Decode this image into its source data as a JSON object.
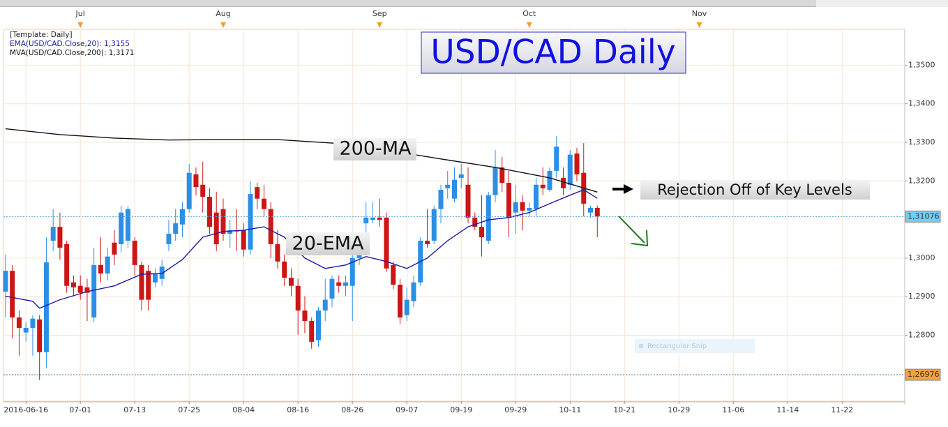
{
  "chart_data": {
    "type": "candlestick",
    "title": "USD/CAD Daily",
    "legend": [
      "[Template: Daily]",
      "EMA(USD/CAD.Close,20): 1,3155",
      "MVA(USD/CAD.Close,200): 1,3171"
    ],
    "xlim": [
      -0.3,
      132.2
    ],
    "xticks": [
      {
        "value": 3,
        "label": "2016-06-16"
      },
      {
        "value": 11,
        "label": "07-01"
      },
      {
        "value": 19,
        "label": "07-13"
      },
      {
        "value": 27,
        "label": "07-25"
      },
      {
        "value": 35,
        "label": "08-04"
      },
      {
        "value": 43,
        "label": "08-16"
      },
      {
        "value": 51,
        "label": "08-26"
      },
      {
        "value": 59,
        "label": "09-07"
      },
      {
        "value": 67,
        "label": "09-19"
      },
      {
        "value": 75,
        "label": "09-29"
      },
      {
        "value": 83,
        "label": "10-11"
      },
      {
        "value": 91,
        "label": "10-21"
      },
      {
        "value": 99,
        "label": "10-29"
      },
      {
        "value": 107,
        "label": "11-06"
      },
      {
        "value": 115,
        "label": "11-14"
      },
      {
        "value": 123,
        "label": "11-22"
      }
    ],
    "month_ticks": [
      {
        "value": 11,
        "label": "Jul"
      },
      {
        "value": 32,
        "label": "Aug"
      },
      {
        "value": 55,
        "label": "Sep"
      },
      {
        "value": 77,
        "label": "Oct"
      },
      {
        "value": 102,
        "label": "Nov"
      }
    ],
    "ylim": [
      1.2629,
      1.3593
    ],
    "yticks": [
      {
        "value": 1.28,
        "label": "1,2800"
      },
      {
        "value": 1.29,
        "label": "1,2900"
      },
      {
        "value": 1.3,
        "label": "1,3000"
      },
      {
        "value": 1.32,
        "label": "1,3200"
      },
      {
        "value": 1.33,
        "label": "1,3300"
      },
      {
        "value": 1.34,
        "label": "1,3400"
      },
      {
        "value": 1.35,
        "label": "1,3500"
      }
    ],
    "grid": true,
    "up_color": "#2b8fe6",
    "down_color": "#cc1616",
    "ohlc": {
      "open": [
        1.2913,
        1.2967,
        1.2846,
        1.2807,
        1.2819,
        1.2841,
        1.2756,
        1.3045,
        1.3081,
        1.3036,
        1.2937,
        1.2928,
        1.2924,
        1.2846,
        1.2982,
        1.296,
        1.304,
        1.3036,
        1.3045,
        1.3045,
        1.2982,
        1.2967,
        1.2937,
        1.2946,
        1.3036,
        1.3063,
        1.3087,
        1.3127,
        1.3217,
        1.319,
        1.3159,
        1.3118,
        1.3127,
        1.3063,
        1.3072,
        1.3072,
        1.3022,
        1.3184,
        1.3154,
        1.3127,
        1.3036,
        1.2991,
        1.2949,
        1.2928,
        1.2864,
        1.2837,
        1.2787,
        1.2864,
        1.2895,
        1.2937,
        1.2928,
        1.2928,
        1.3,
        1.309,
        1.3099,
        1.3105,
        1.3105,
        1.2982,
        1.2931,
        1.2852,
        1.2888,
        1.2937,
        1.3045,
        1.3045,
        1.3127,
        1.3181,
        1.3154,
        1.3208,
        1.319,
        1.3105,
        1.3081,
        1.3045,
        1.3163,
        1.3235,
        1.3195,
        1.3118,
        1.3145,
        1.3123,
        1.3127,
        1.319,
        1.3177,
        1.3226,
        1.3208,
        1.319,
        1.3271,
        1.3221,
        1.3118,
        1.313
      ],
      "high": [
        1.3009,
        1.2982,
        1.2864,
        1.2834,
        1.2852,
        1.2852,
        1.3054,
        1.3127,
        1.3118,
        1.3045,
        1.2955,
        1.2955,
        1.2946,
        1.3027,
        1.3054,
        1.3027,
        1.3072,
        1.3136,
        1.3136,
        1.3054,
        1.2991,
        1.2982,
        1.2973,
        1.2996,
        1.3099,
        1.3127,
        1.3145,
        1.3244,
        1.3235,
        1.325,
        1.3181,
        1.3172,
        1.3154,
        1.3099,
        1.3127,
        1.309,
        1.3199,
        1.3195,
        1.319,
        1.3145,
        1.3072,
        1.3009,
        1.2973,
        1.2946,
        1.2901,
        1.2846,
        1.2873,
        1.2946,
        1.2955,
        1.2955,
        1.2955,
        1.3009,
        1.3027,
        1.3145,
        1.3145,
        1.3154,
        1.3118,
        1.2991,
        1.2946,
        1.2924,
        1.2955,
        1.3054,
        1.3127,
        1.3136,
        1.319,
        1.3226,
        1.3235,
        1.3244,
        1.3235,
        1.3118,
        1.3163,
        1.3172,
        1.328,
        1.3262,
        1.3226,
        1.319,
        1.3163,
        1.3145,
        1.3208,
        1.3235,
        1.3235,
        1.3316,
        1.3235,
        1.328,
        1.3286,
        1.3298,
        1.3136,
        1.3136
      ],
      "low": [
        1.2846,
        1.2792,
        1.2747,
        1.2783,
        1.2747,
        1.2684,
        1.2714,
        1.3018,
        1.2996,
        1.291,
        1.2901,
        1.2892,
        1.2837,
        1.2834,
        1.2937,
        1.2942,
        1.2982,
        1.3014,
        1.3027,
        1.2955,
        1.2864,
        1.2864,
        1.2924,
        1.2928,
        1.3018,
        1.3045,
        1.3054,
        1.3118,
        1.3163,
        1.3118,
        1.3063,
        1.3018,
        1.3045,
        1.3027,
        1.3018,
        1.3004,
        1.3009,
        1.3127,
        1.3108,
        1.3,
        1.2973,
        1.2928,
        1.2901,
        1.2801,
        1.2805,
        1.2765,
        1.277,
        1.2837,
        1.2873,
        1.291,
        1.2901,
        1.2837,
        1.2982,
        1.3063,
        1.309,
        1.3081,
        1.2964,
        1.2919,
        1.2828,
        1.2837,
        1.2873,
        1.2928,
        1.3027,
        1.3036,
        1.309,
        1.3154,
        1.3145,
        1.3181,
        1.309,
        1.3072,
        1.3004,
        1.3036,
        1.3145,
        1.3172,
        1.3054,
        1.3063,
        1.3072,
        1.3108,
        1.3108,
        1.3163,
        1.3172,
        1.3208,
        1.3163,
        1.3177,
        1.3199,
        1.3108,
        1.3105,
        1.3054
      ],
      "close": [
        1.2967,
        1.2846,
        1.2819,
        1.2819,
        1.2843,
        1.2756,
        1.2989,
        1.3081,
        1.3027,
        1.2928,
        1.2924,
        1.291,
        1.291,
        1.2982,
        1.296,
        1.3004,
        1.3009,
        1.3118,
        1.3127,
        1.2982,
        1.2892,
        1.2892,
        1.296,
        1.2978,
        1.3063,
        1.309,
        1.3127,
        1.3221,
        1.3184,
        1.3159,
        1.3081,
        1.3036,
        1.3063,
        1.3072,
        1.3069,
        1.3022,
        1.3166,
        1.3154,
        1.3127,
        1.3036,
        1.2991,
        1.2949,
        1.2928,
        1.2864,
        1.2837,
        1.2783,
        1.2864,
        1.2892,
        1.2946,
        1.2928,
        1.2937,
        1.3,
        1.3018,
        1.3105,
        1.3105,
        1.3099,
        1.2973,
        1.2931,
        1.2846,
        1.2892,
        1.2937,
        1.3045,
        1.3036,
        1.3127,
        1.3177,
        1.319,
        1.3203,
        1.3217,
        1.3105,
        1.3081,
        1.3054,
        1.3163,
        1.3235,
        1.3195,
        1.3105,
        1.3145,
        1.3123,
        1.313,
        1.319,
        1.3181,
        1.3226,
        1.3289,
        1.3181,
        1.3268,
        1.3217,
        1.3141,
        1.313,
        1.3108
      ]
    },
    "lines": [
      {
        "color": "#111111",
        "x": [
          0,
          8,
          16,
          24,
          32,
          40,
          48,
          56,
          64,
          72,
          80,
          87
        ],
        "values": [
          1.3335,
          1.332,
          1.3311,
          1.3306,
          1.3307,
          1.3307,
          1.3298,
          1.328,
          1.3257,
          1.3235,
          1.3208,
          1.3171
        ]
      },
      {
        "color": "#1a1aa8",
        "x": [
          0,
          4,
          5,
          8,
          12,
          16,
          20,
          23,
          26,
          29,
          32,
          35,
          38,
          41,
          44,
          47,
          50,
          53,
          56,
          59,
          62,
          65,
          68,
          71,
          74,
          77,
          80,
          83,
          85,
          87
        ],
        "values": [
          1.2901,
          1.2888,
          1.287,
          1.2892,
          1.2913,
          1.2928,
          1.2958,
          1.296,
          1.2996,
          1.3054,
          1.3069,
          1.3072,
          1.3081,
          1.3054,
          1.3,
          1.2973,
          1.2982,
          1.3004,
          1.2991,
          1.2973,
          1.3,
          1.3045,
          1.3081,
          1.3099,
          1.3105,
          1.3118,
          1.3141,
          1.3163,
          1.3177,
          1.3155
        ]
      }
    ],
    "price_lines": [
      {
        "value": 1.31076,
        "label": "1,31076",
        "color": "#5aa6dc",
        "label_color": "#74cdf5"
      },
      {
        "value": 1.26976,
        "label": "1,26976",
        "color": "#2a6f8a",
        "label_color": "#f5a23c"
      }
    ],
    "annotations": [
      "200-MA",
      "20-EMA",
      "Rejection Off of Key Levels",
      "Rectangular Snip"
    ]
  }
}
